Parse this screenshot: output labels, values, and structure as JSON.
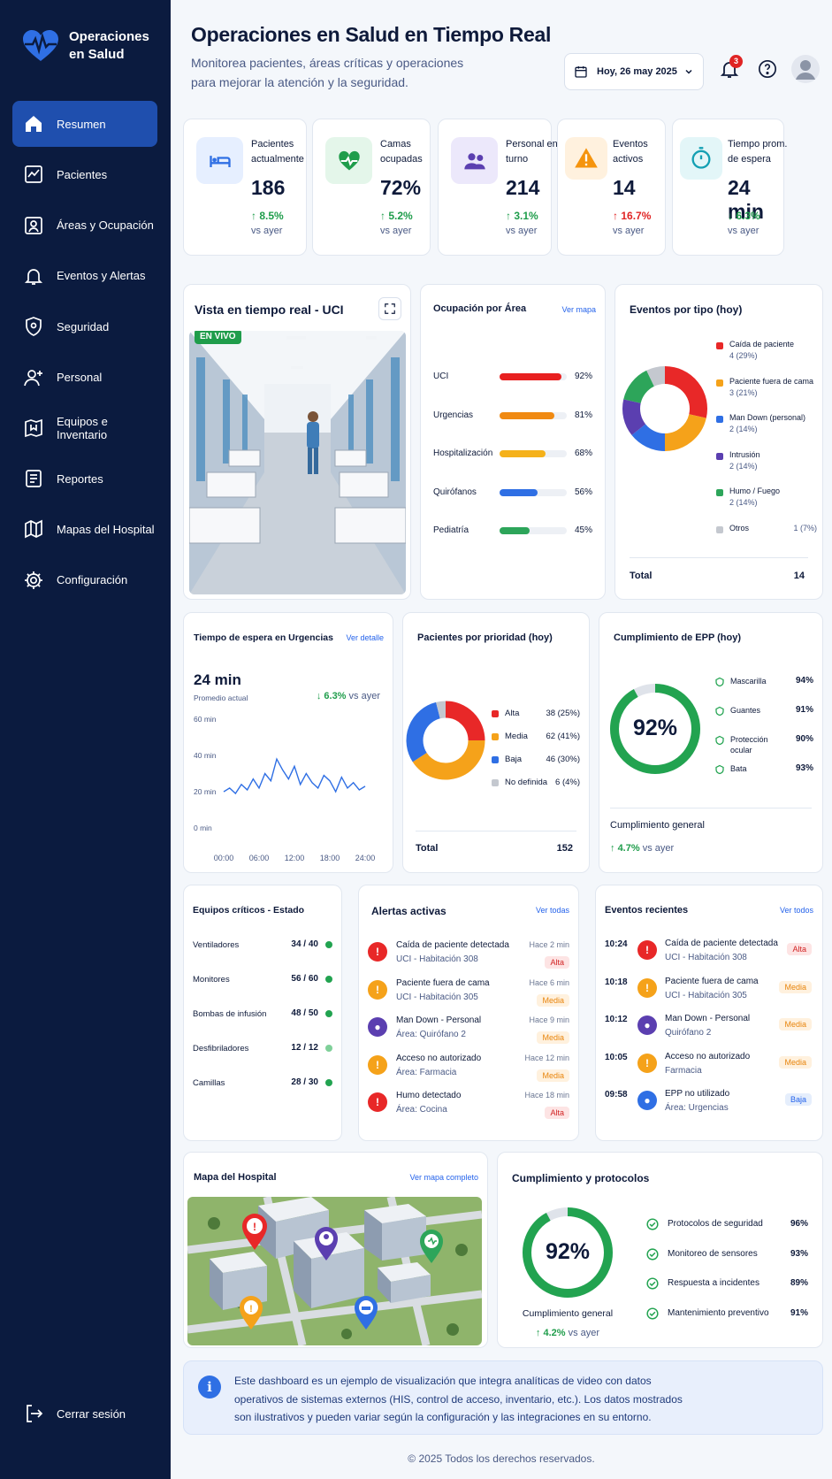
{
  "app": {
    "title": "Operaciones en Salud"
  },
  "sidebar": {
    "items": [
      {
        "label": "Resumen",
        "icon": "home-icon",
        "active": true
      },
      {
        "label": "Pacientes",
        "icon": "chart-icon"
      },
      {
        "label": "Áreas y Ocupación",
        "icon": "area-icon"
      },
      {
        "label": "Eventos y Alertas",
        "icon": "bell-icon"
      },
      {
        "label": "Seguridad",
        "icon": "shield-icon"
      },
      {
        "label": "Personal",
        "icon": "user-plus-icon"
      },
      {
        "label": "Equipos e Inventario",
        "icon": "inventory-icon"
      },
      {
        "label": "Reportes",
        "icon": "report-icon"
      },
      {
        "label": "Mapas del Hospital",
        "icon": "map-icon"
      },
      {
        "label": "Configuración",
        "icon": "gear-icon"
      }
    ],
    "logout": "Cerrar sesión"
  },
  "header": {
    "title": "Operaciones en Salud en Tiempo Real",
    "subtitle": "Monitorea pacientes, áreas críticas y operaciones para mejorar la atención y la seguridad.",
    "date": "Hoy, 26 may 2025",
    "notifications": "3"
  },
  "kpis": [
    {
      "label": "Pacientes actualmente",
      "value": "186",
      "delta": "8.5%",
      "dir": "up",
      "vs": "vs ayer",
      "icon": "bed-icon",
      "color": "#2f6fe4",
      "bg": "#e6efff"
    },
    {
      "label": "Camas ocupadas",
      "value": "72%",
      "delta": "5.2%",
      "dir": "up",
      "vs": "vs ayer",
      "icon": "heart-pulse-icon",
      "color": "#1f9d4b",
      "bg": "#e4f6ea"
    },
    {
      "label": "Personal en turno",
      "value": "214",
      "delta": "3.1%",
      "dir": "up",
      "vs": "vs ayer",
      "icon": "people-icon",
      "color": "#5b3fb0",
      "bg": "#ece8fb"
    },
    {
      "label": "Eventos activos",
      "value": "14",
      "delta": "16.7%",
      "dir": "up-red",
      "vs": "vs ayer",
      "icon": "warning-icon",
      "color": "#f5940e",
      "bg": "#fff1de"
    },
    {
      "label": "Tiempo prom. de espera",
      "value": "24 min",
      "delta": "6.3%",
      "dir": "down",
      "vs": "vs ayer",
      "icon": "timer-icon",
      "color": "#14a0b3",
      "bg": "#e3f6f8"
    }
  ],
  "live": {
    "title": "Vista en tiempo real - UCI",
    "badge": "EN VIVO"
  },
  "occupancy": {
    "title": "Ocupación por Área",
    "link": "Ver mapa",
    "rows": [
      {
        "label": "UCI",
        "pct": "92%",
        "value": 92,
        "color": "#e82020"
      },
      {
        "label": "Urgencias",
        "pct": "81%",
        "value": 81,
        "color": "#f08a12"
      },
      {
        "label": "Hospitalización",
        "pct": "68%",
        "value": 68,
        "color": "#f5b11a"
      },
      {
        "label": "Quirófanos",
        "pct": "56%",
        "value": 56,
        "color": "#2f6fe4"
      },
      {
        "label": "Pediatría",
        "pct": "45%",
        "value": 45,
        "color": "#2da55a"
      }
    ]
  },
  "events_type": {
    "title": "Eventos por tipo (hoy)",
    "total_label": "Total",
    "total": "14",
    "items": [
      {
        "label": "Caída de paciente",
        "sub": "4 (29%)",
        "value": 4,
        "color": "#e82828"
      },
      {
        "label": "Paciente fuera de cama",
        "sub": "3 (21%)",
        "value": 3,
        "color": "#f5a21a"
      },
      {
        "label": "Man Down (personal)",
        "sub": "2 (14%)",
        "value": 2,
        "color": "#2f6fe4"
      },
      {
        "label": "Intrusión",
        "sub": "2 (14%)",
        "value": 2,
        "color": "#5b3fb0"
      },
      {
        "label": "Humo / Fuego",
        "sub": "2 (14%)",
        "value": 2,
        "color": "#2da55a"
      },
      {
        "label": "Otros",
        "sub": "1 (7%)",
        "value": 1,
        "color": "#c4c8cf"
      }
    ]
  },
  "wait": {
    "title": "Tiempo de espera en Urgencias",
    "link": "Ver detalle",
    "value": "24 min",
    "label": "Promedio actual",
    "delta": "6.3%",
    "vs": "vs ayer"
  },
  "chart_data": {
    "type": "line",
    "title": "Tiempo de espera en Urgencias",
    "yticks": [
      "60 min",
      "40 min",
      "20 min",
      "0 min"
    ],
    "xticks": [
      "00:00",
      "06:00",
      "12:00",
      "18:00",
      "24:00"
    ],
    "ylim": [
      0,
      60
    ],
    "xlim": [
      0,
      24
    ],
    "series": [
      {
        "color": "#2f6fe4",
        "x": [
          0,
          1,
          2,
          3,
          4,
          5,
          6,
          7,
          8,
          9,
          10,
          11,
          12,
          13,
          14,
          15,
          16,
          17,
          18,
          19,
          20,
          21,
          22,
          23,
          24
        ],
        "y": [
          20,
          22,
          19,
          24,
          21,
          27,
          22,
          30,
          26,
          38,
          32,
          27,
          34,
          24,
          30,
          25,
          22,
          29,
          26,
          20,
          28,
          22,
          25,
          21,
          23
        ]
      }
    ]
  },
  "priority": {
    "title": "Pacientes por prioridad (hoy)",
    "total_label": "Total",
    "total": "152",
    "items": [
      {
        "label": "Alta",
        "sub": "38 (25%)",
        "value": 38,
        "color": "#e82828"
      },
      {
        "label": "Media",
        "sub": "62 (41%)",
        "value": 62,
        "color": "#f5a21a"
      },
      {
        "label": "Baja",
        "sub": "46 (30%)",
        "value": 46,
        "color": "#2f6fe4"
      },
      {
        "label": "No definida",
        "sub": "6 (4%)",
        "value": 6,
        "color": "#c4c8cf"
      }
    ]
  },
  "epp": {
    "title": "Cumplimiento de EPP (hoy)",
    "value": "92%",
    "fraction": 0.92,
    "general": "Cumplimiento general",
    "delta": "4.7%",
    "vs": "vs ayer",
    "items": [
      {
        "label": "Mascarilla",
        "pct": "94%",
        "icon": "mask-icon"
      },
      {
        "label": "Guantes",
        "pct": "91%",
        "icon": "glove-icon"
      },
      {
        "label": "Protección ocular",
        "pct": "90%",
        "icon": "goggles-icon"
      },
      {
        "label": "Bata",
        "pct": "93%",
        "icon": "gown-icon"
      }
    ]
  },
  "equipment": {
    "title": "Equipos críticos - Estado",
    "items": [
      {
        "label": "Ventiladores",
        "value": "34 / 40"
      },
      {
        "label": "Monitores",
        "value": "56 / 60"
      },
      {
        "label": "Bombas de infusión",
        "value": "48 / 50"
      },
      {
        "label": "Desfibriladores",
        "value": "12 / 12"
      },
      {
        "label": "Camillas",
        "value": "28 / 30"
      }
    ]
  },
  "alerts": {
    "title": "Alertas activas",
    "link": "Ver todas",
    "items": [
      {
        "title": "Caída de paciente detectada",
        "sub": "UCI - Habitación 308",
        "time": "Hace 2 min",
        "sev": "Alta",
        "color": "#e82828",
        "icon": "!"
      },
      {
        "title": "Paciente fuera de cama",
        "sub": "UCI - Habitación 305",
        "time": "Hace 6 min",
        "sev": "Media",
        "color": "#f5a21a",
        "icon": "!"
      },
      {
        "title": "Man Down - Personal",
        "sub": "Área: Quirófano 2",
        "time": "Hace 9 min",
        "sev": "Media",
        "color": "#5b3fb0",
        "icon": "●"
      },
      {
        "title": "Acceso no autorizado",
        "sub": "Área: Farmacia",
        "time": "Hace 12 min",
        "sev": "Media",
        "color": "#f5a21a",
        "icon": "!"
      },
      {
        "title": "Humo detectado",
        "sub": "Área: Cocina",
        "time": "Hace 18 min",
        "sev": "Alta",
        "color": "#e82828",
        "icon": "!"
      }
    ]
  },
  "recent": {
    "title": "Eventos recientes",
    "link": "Ver todos",
    "items": [
      {
        "time": "10:24",
        "title": "Caída de paciente detectada",
        "sub": "UCI - Habitación 308",
        "sev": "Alta",
        "color": "#e82828",
        "icon": "!"
      },
      {
        "time": "10:18",
        "title": "Paciente fuera de cama",
        "sub": "UCI - Habitación 305",
        "sev": "Media",
        "color": "#f5a21a",
        "icon": "!"
      },
      {
        "time": "10:12",
        "title": "Man Down - Personal",
        "sub": "Quirófano 2",
        "sev": "Media",
        "color": "#5b3fb0",
        "icon": "●"
      },
      {
        "time": "10:05",
        "title": "Acceso no autorizado",
        "sub": "Farmacia",
        "sev": "Media",
        "color": "#f5a21a",
        "icon": "!"
      },
      {
        "time": "09:58",
        "title": "EPP no utilizado",
        "sub": "Área: Urgencias",
        "sev": "Baja",
        "color": "#2f6fe4",
        "icon": "●"
      }
    ]
  },
  "map": {
    "title": "Mapa del Hospital",
    "link": "Ver mapa completo"
  },
  "protocols": {
    "title": "Cumplimiento y protocolos",
    "value": "92%",
    "fraction": 0.92,
    "general": "Cumplimiento general",
    "delta": "4.2%",
    "vs": "vs ayer",
    "items": [
      {
        "label": "Protocolos de seguridad",
        "pct": "96%"
      },
      {
        "label": "Monitoreo de sensores",
        "pct": "93%"
      },
      {
        "label": "Respuesta a incidentes",
        "pct": "89%"
      },
      {
        "label": "Mantenimiento preventivo",
        "pct": "91%"
      }
    ]
  },
  "note": "Este dashboard es un ejemplo de visualización que integra analíticas de video con datos operativos de sistemas externos (HIS, control de acceso, inventario, etc.). Los datos mostrados son ilustrativos y pueden variar según la configuración y las integraciones en su entorno.",
  "copyright": "© 2025 Todos los derechos reservados."
}
